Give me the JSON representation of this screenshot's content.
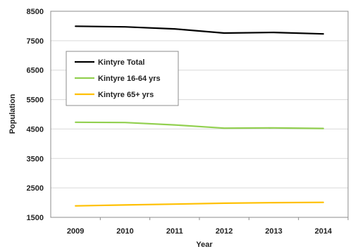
{
  "chart_data": {
    "type": "line",
    "title": "",
    "xlabel": "Year",
    "ylabel": "Population",
    "x": [
      "2009",
      "2010",
      "2011",
      "2012",
      "2013",
      "2014"
    ],
    "ylim": [
      1500,
      8500
    ],
    "yticks": [
      1500,
      2500,
      3500,
      4500,
      5500,
      6500,
      7500,
      8500
    ],
    "grid": "horizontal",
    "legend": "top-left",
    "series": [
      {
        "name": "Kintyre Total",
        "color": "#000000",
        "values": [
          7990,
          7970,
          7900,
          7760,
          7780,
          7730
        ]
      },
      {
        "name": "Kintyre 16-64 yrs",
        "color": "#92d050",
        "values": [
          4730,
          4720,
          4640,
          4530,
          4540,
          4520
        ]
      },
      {
        "name": "Kintyre 65+ yrs",
        "color": "#ffc000",
        "values": [
          1890,
          1920,
          1950,
          1980,
          2000,
          2010
        ]
      }
    ]
  }
}
